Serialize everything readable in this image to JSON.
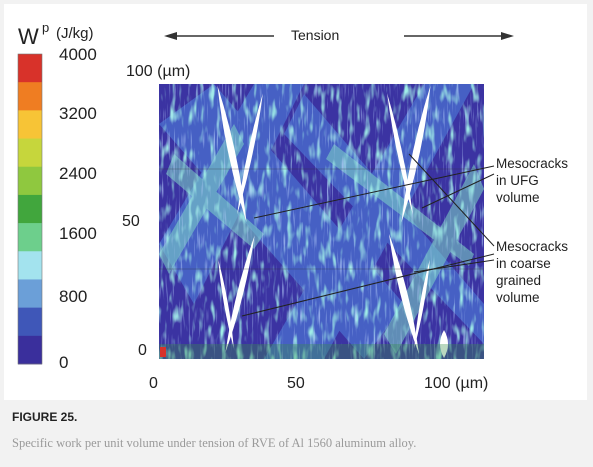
{
  "colorbar": {
    "quantity_symbol": "W",
    "quantity_superscript": "p",
    "unit": "(J/kg)",
    "ticks": [
      "4000",
      "3200",
      "2400",
      "1600",
      "800",
      "0"
    ],
    "colors": [
      "#d8322a",
      "#ef7d22",
      "#f7c436",
      "#c6d63c",
      "#8fc83f",
      "#41a63d",
      "#6dcf8c",
      "#a3e3ee",
      "#6b9fd8",
      "#3f57b8",
      "#3a2f9c"
    ]
  },
  "load": {
    "label": "Tension"
  },
  "axes": {
    "y_top_label": "100 (µm)",
    "y_mid_label": "50",
    "y_bottom_label": "0",
    "x_ticks": [
      "0",
      "50",
      "100 (µm)"
    ]
  },
  "annotations": {
    "ufg": [
      "Mesocracks",
      "in UFG",
      "volume"
    ],
    "coarse": [
      "Mesocracks",
      "in coarse",
      "grained",
      "volume"
    ]
  },
  "caption": {
    "title": "FIGURE 25.",
    "text": "Specific work per unit volume under tension of RVE of Al 1560 aluminum alloy."
  }
}
